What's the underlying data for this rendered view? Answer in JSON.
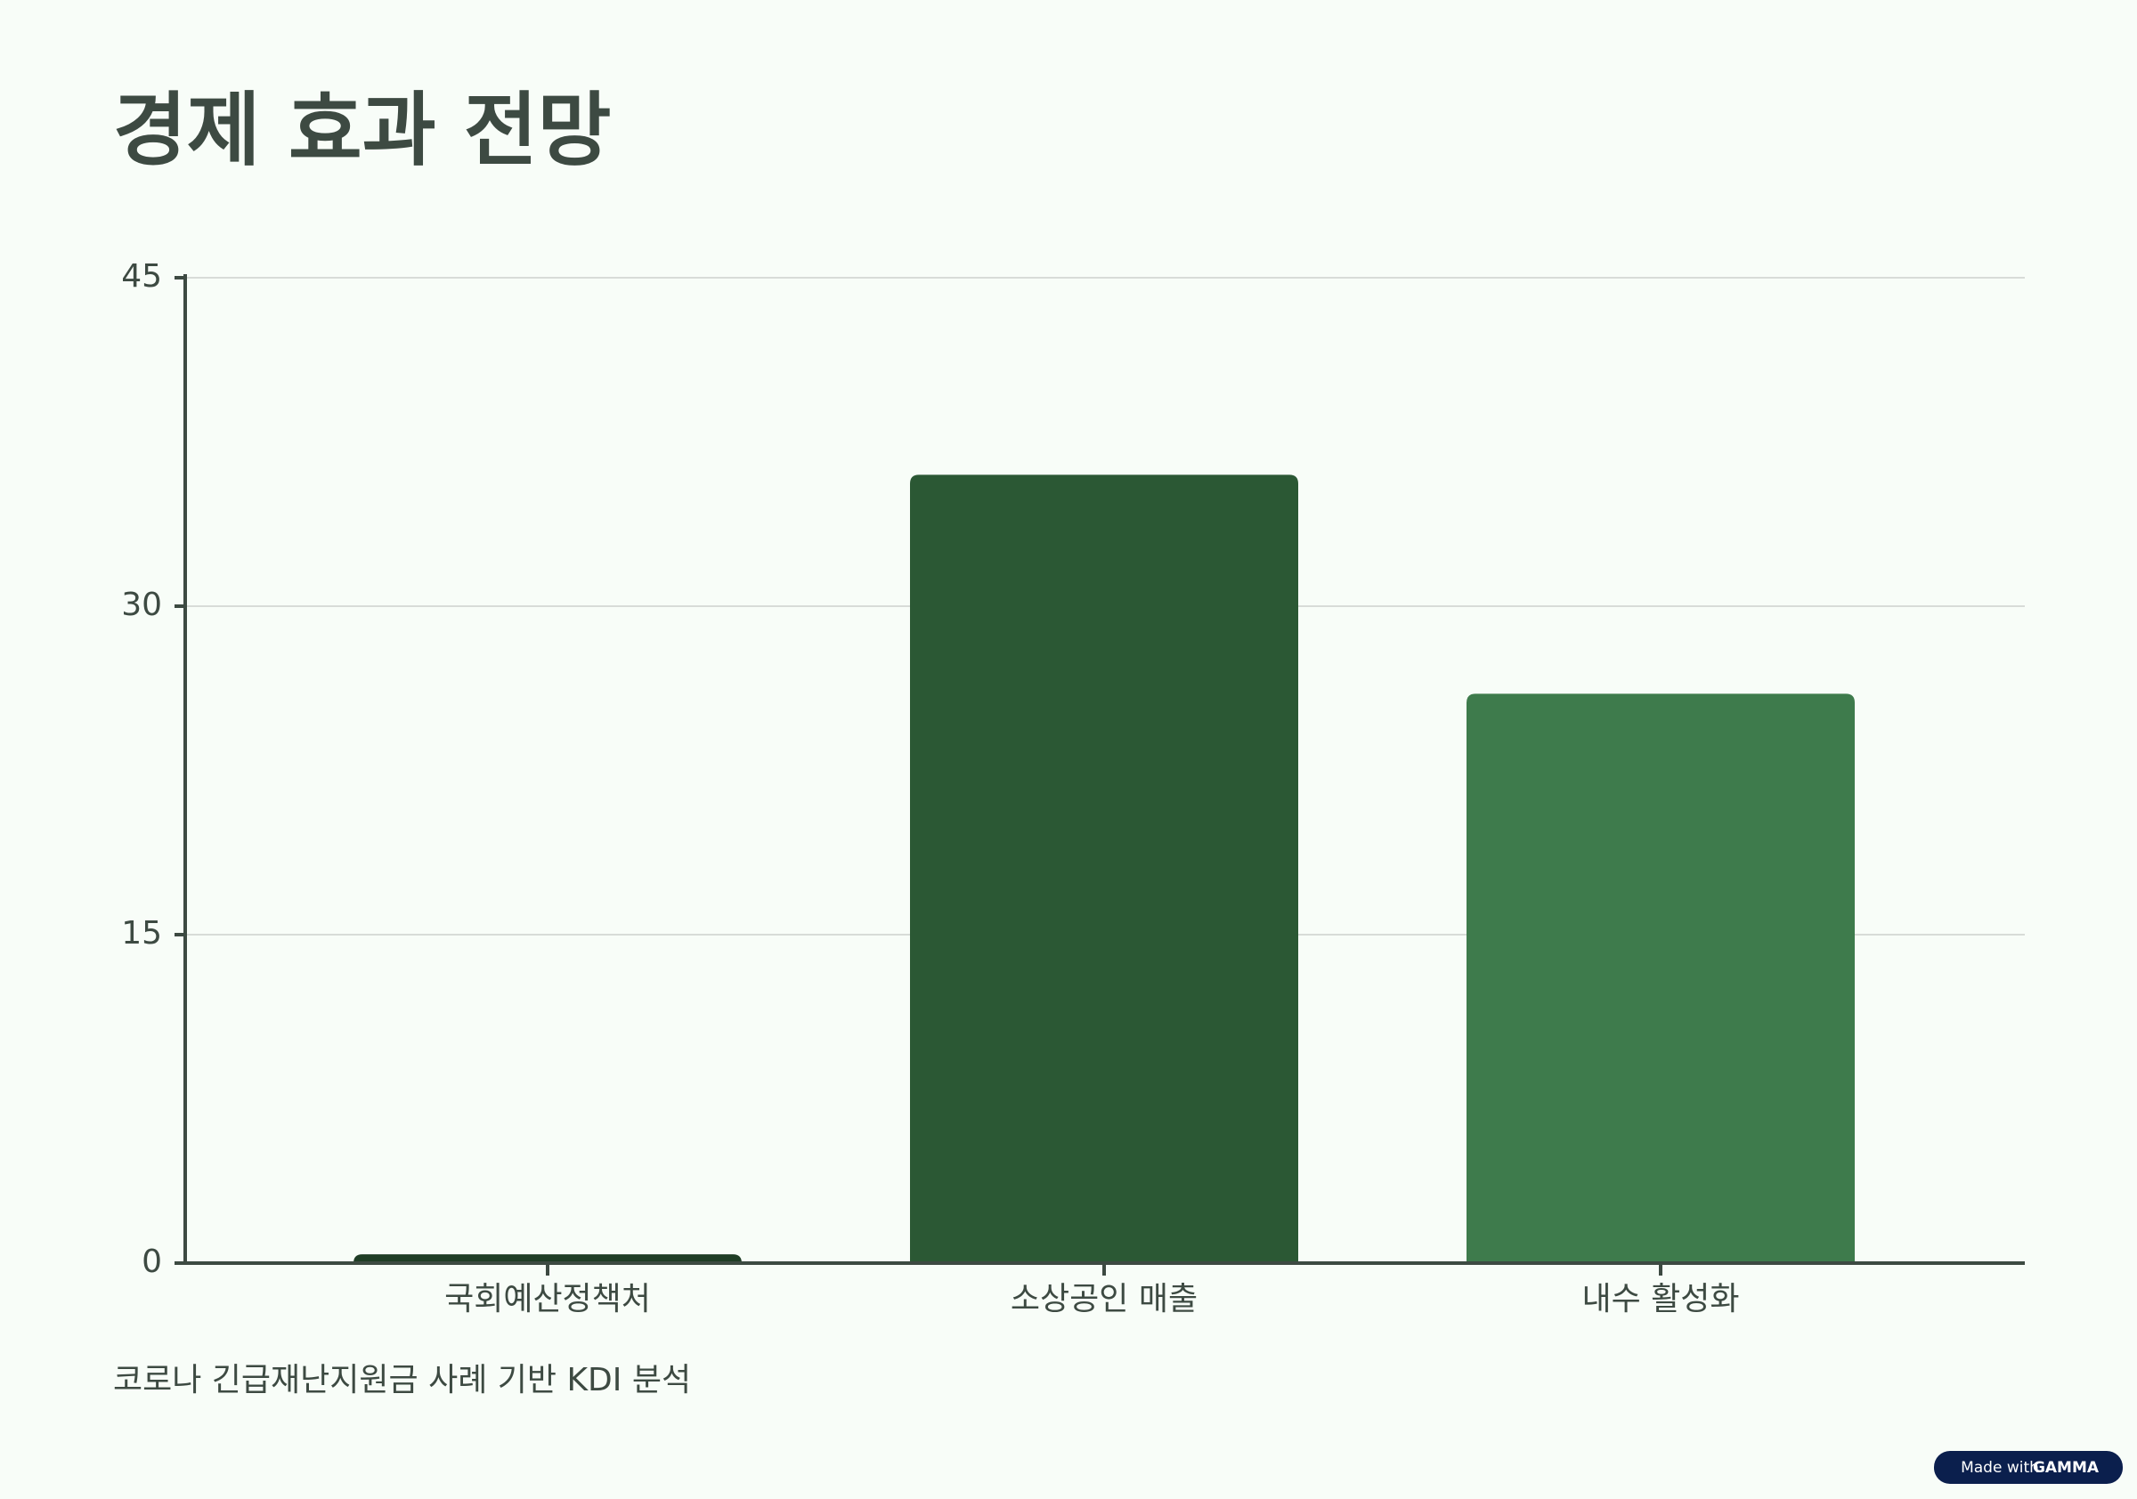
{
  "chart_data": {
    "type": "bar",
    "title": "경제 효과 전망",
    "categories": [
      "국회예산정책처",
      "소상공인 매출",
      "내수 활성화"
    ],
    "values": [
      0.4,
      36,
      26
    ],
    "colors": [
      "#1f3d25",
      "#2b5834",
      "#3e7b4c"
    ],
    "ylim": [
      0,
      45
    ],
    "yticks": [
      0,
      15,
      30,
      45
    ],
    "grid": true,
    "footnote": "코로나 긴급재난지원금 사례 기반 KDI 분석"
  },
  "badge": {
    "prefix": "Made with",
    "brand": "GAMMA"
  }
}
